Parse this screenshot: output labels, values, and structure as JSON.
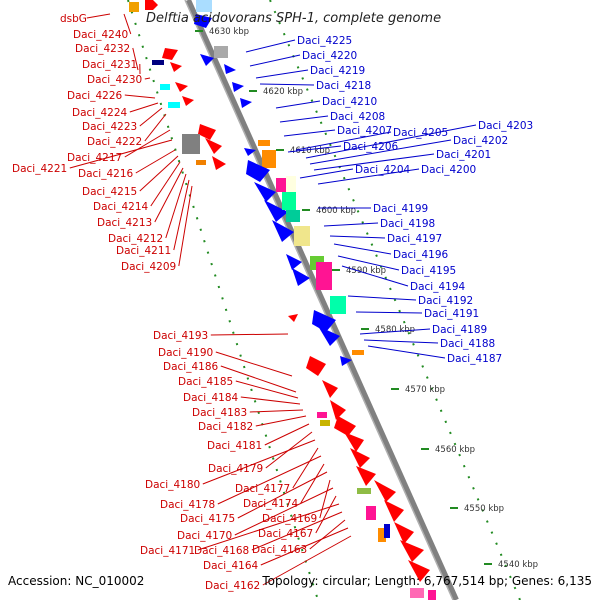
{
  "title": "Delftia acidovorans SPH-1, complete genome",
  "footer": {
    "accession": "Accession: NC_010002",
    "topology": "Topology: circular; Length: 6,767,514 bp; Genes: 6,135"
  },
  "kbp_ticks": [
    "4630 kbp",
    "4620 kbp",
    "4610 kbp",
    "4600 kbp",
    "4590 kbp",
    "4580 kbp",
    "4570 kbp",
    "4560 kbp",
    "4550 kbp",
    "4540 kbp"
  ],
  "labels_left": [
    "dsbG",
    "Daci_4240",
    "Daci_4232",
    "Daci_4231",
    "Daci_4230",
    "Daci_4226",
    "Daci_4224",
    "Daci_4223",
    "Daci_4222",
    "Daci_4217",
    "Daci_4221",
    "Daci_4216",
    "Daci_4215",
    "Daci_4214",
    "Daci_4213",
    "Daci_4212",
    "Daci_4211",
    "Daci_4209",
    "Daci_4193",
    "Daci_4190",
    "Daci_4186",
    "Daci_4185",
    "Daci_4184",
    "Daci_4183",
    "Daci_4182",
    "Daci_4181",
    "Daci_4179",
    "Daci_4180",
    "Daci_4177",
    "Daci_4178",
    "Daci_4174",
    "Daci_4175",
    "Daci_4169",
    "Daci_4170",
    "Daci_4167",
    "Daci_4171",
    "Daci_4168",
    "Daci_4163",
    "Daci_4164",
    "Daci_4162"
  ],
  "labels_right": [
    "Daci_4225",
    "Daci_4220",
    "Daci_4219",
    "Daci_4218",
    "Daci_4210",
    "Daci_4208",
    "Daci_4207",
    "Daci_4205",
    "Daci_4203",
    "Daci_4206",
    "Daci_4202",
    "Daci_4201",
    "Daci_4204",
    "Daci_4200",
    "Daci_4199",
    "Daci_4198",
    "Daci_4197",
    "Daci_4196",
    "Daci_4195",
    "Daci_4194",
    "Daci_4192",
    "Daci_4191",
    "Daci_4189",
    "Daci_4188",
    "Daci_4187"
  ],
  "colors": {
    "forward_label": "#cc0000",
    "reverse_label": "#0000cc",
    "backbone": "#888888",
    "gc_dots": "#228b22"
  }
}
